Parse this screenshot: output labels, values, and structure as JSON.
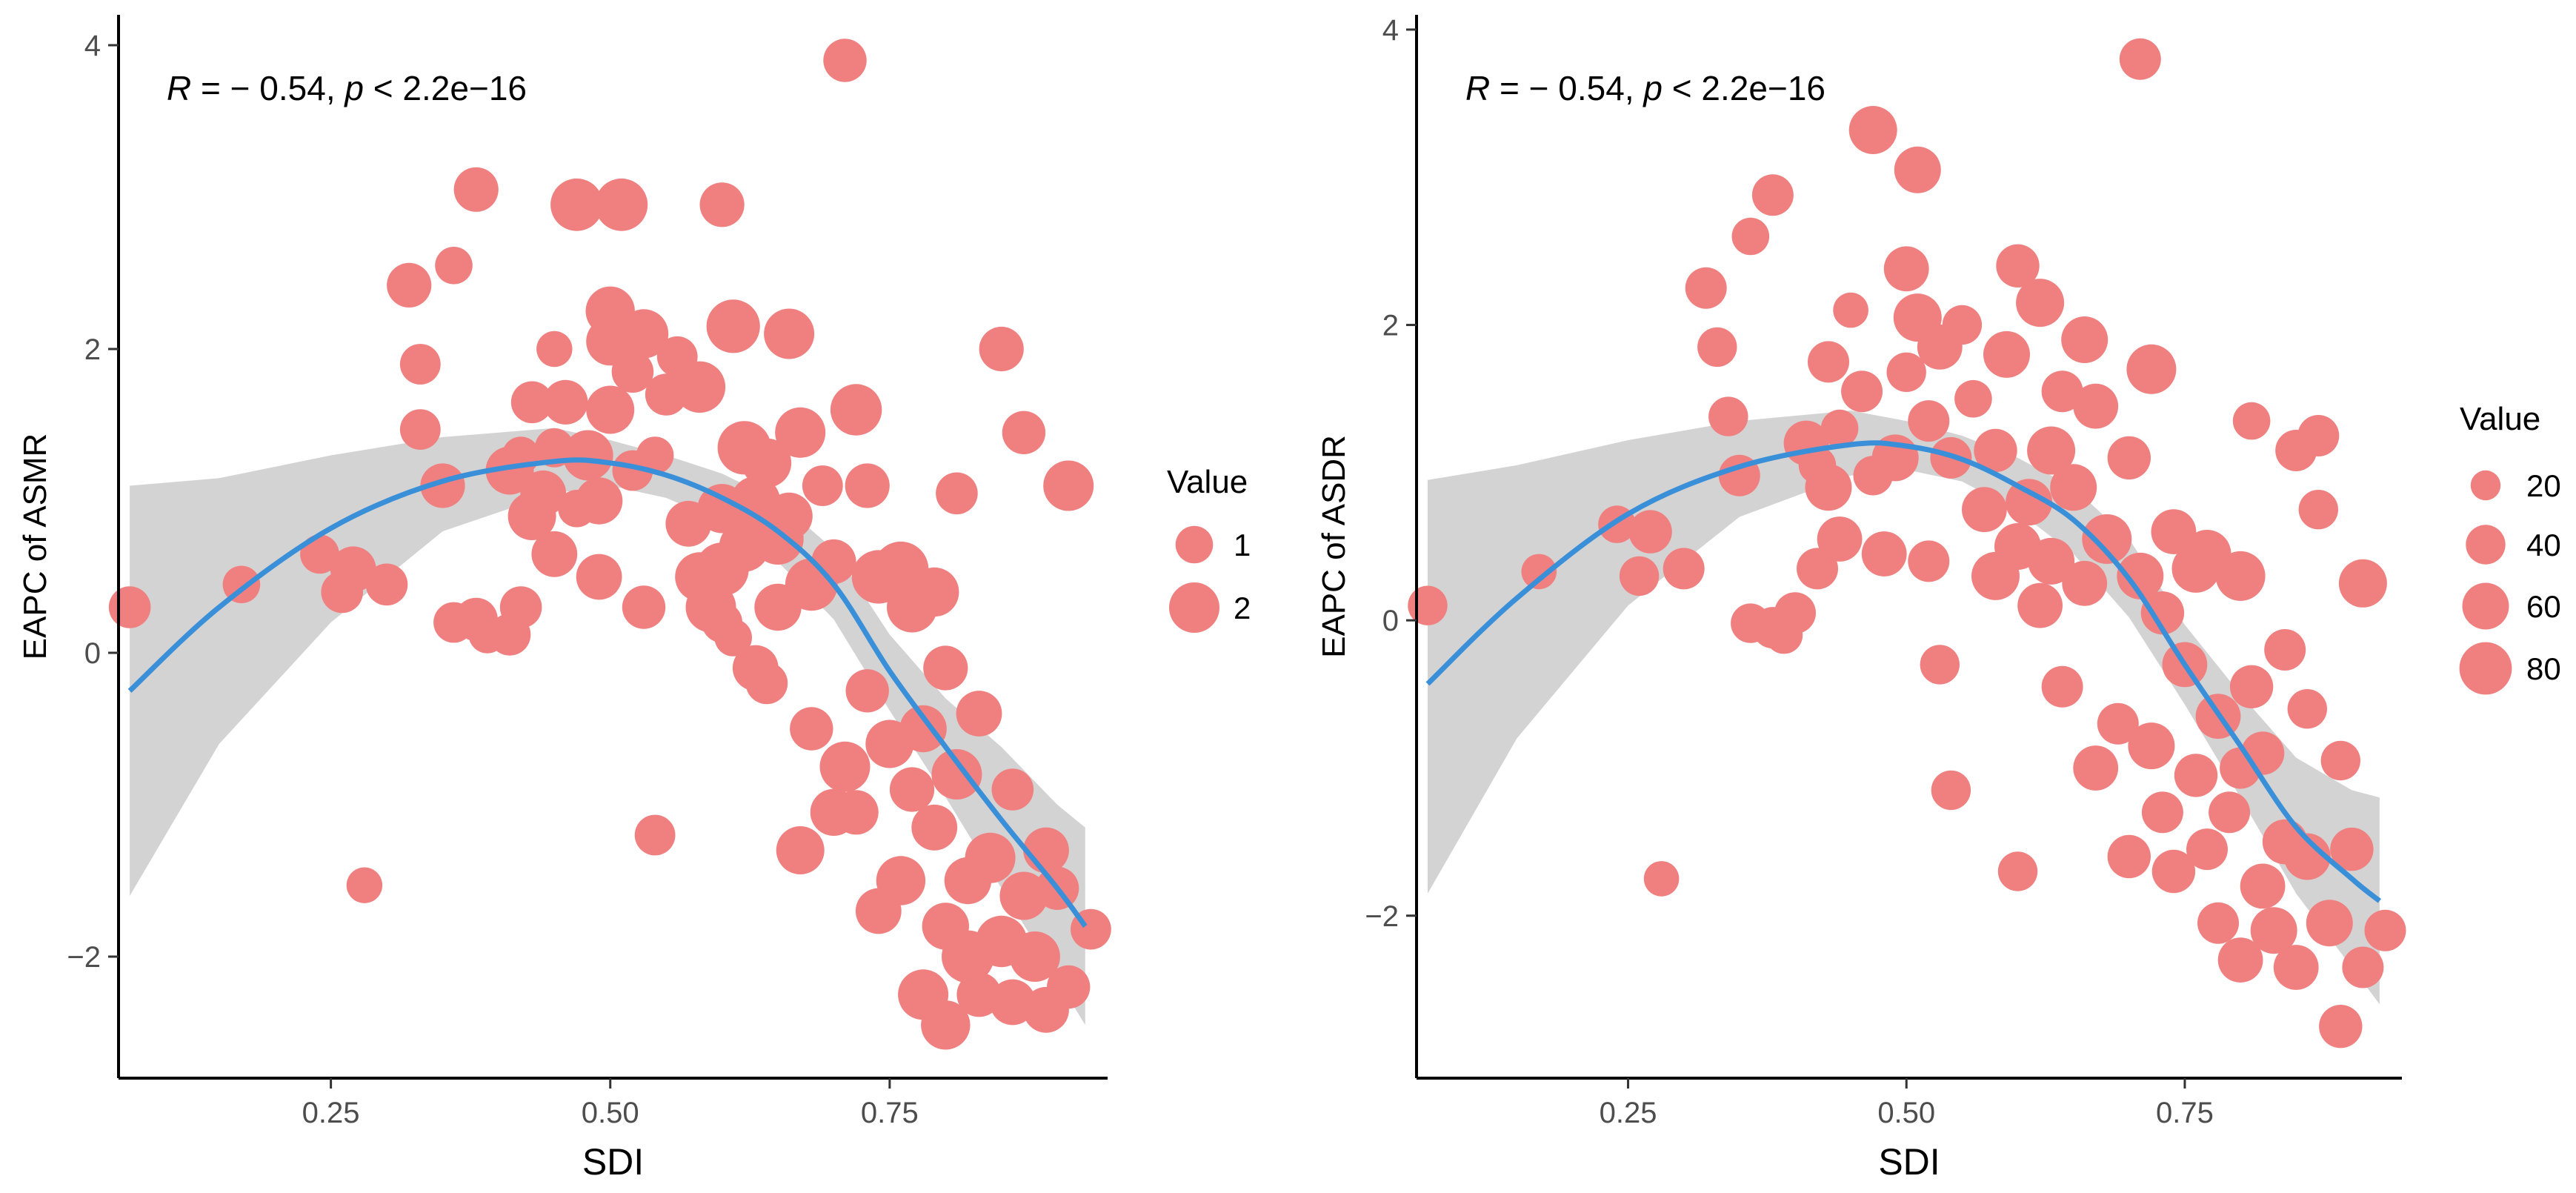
{
  "chart_data": [
    {
      "type": "scatter",
      "xlabel": "SDI",
      "ylabel": "EAPC of ASMR",
      "xlim": [
        0.06,
        0.945
      ],
      "ylim": [
        -2.8,
        4.2
      ],
      "xticks": [
        0.25,
        0.5,
        0.75
      ],
      "xtick_labels": [
        "0.25",
        "0.50",
        "0.75"
      ],
      "yticks": [
        -2,
        0,
        2,
        4
      ],
      "ytick_labels": [
        "−2",
        "0",
        "2",
        "4"
      ],
      "annotation": {
        "r_symbol": "R",
        "r_text": " = − 0.54, ",
        "p_symbol": "p",
        "p_text": " < 2.2e−16"
      },
      "point_color": "#F08080",
      "line_color": "#3A8FD9",
      "band_color": "#C8C8C8",
      "legend": {
        "title": "Value",
        "placement": "right",
        "entries": [
          {
            "label": "1",
            "size": 1
          },
          {
            "label": "2",
            "size": 2
          }
        ]
      },
      "size_domain": [
        0.2,
        2.6
      ],
      "points": [
        [
          0.07,
          0.3,
          1.3
        ],
        [
          0.17,
          0.45,
          1.0
        ],
        [
          0.24,
          0.65,
          1.1
        ],
        [
          0.26,
          0.4,
          1.3
        ],
        [
          0.27,
          0.55,
          1.6
        ],
        [
          0.28,
          -1.53,
          0.9
        ],
        [
          0.3,
          0.45,
          1.3
        ],
        [
          0.32,
          2.42,
          1.5
        ],
        [
          0.33,
          1.9,
          1.2
        ],
        [
          0.33,
          1.47,
          1.2
        ],
        [
          0.35,
          1.1,
          1.5
        ],
        [
          0.36,
          2.55,
          1.0
        ],
        [
          0.36,
          0.2,
          1.2
        ],
        [
          0.38,
          0.22,
          1.4
        ],
        [
          0.38,
          3.05,
          1.5
        ],
        [
          0.39,
          0.12,
          1.0
        ],
        [
          0.41,
          0.12,
          1.3
        ],
        [
          0.41,
          1.2,
          1.8
        ],
        [
          0.42,
          1.3,
          1.0
        ],
        [
          0.42,
          0.3,
          1.3
        ],
        [
          0.43,
          1.65,
          1.3
        ],
        [
          0.43,
          0.9,
          1.8
        ],
        [
          0.44,
          1.05,
          1.6
        ],
        [
          0.45,
          0.65,
          1.6
        ],
        [
          0.45,
          1.35,
          1.1
        ],
        [
          0.45,
          2.0,
          0.9
        ],
        [
          0.46,
          1.65,
          1.5
        ],
        [
          0.47,
          0.95,
          1.0
        ],
        [
          0.47,
          2.95,
          2.2
        ],
        [
          0.48,
          1.3,
          2.0
        ],
        [
          0.49,
          0.5,
          1.6
        ],
        [
          0.49,
          1.0,
          1.7
        ],
        [
          0.5,
          2.25,
          1.9
        ],
        [
          0.5,
          1.6,
          1.8
        ],
        [
          0.5,
          2.05,
          1.8
        ],
        [
          0.51,
          2.95,
          2.2
        ],
        [
          0.52,
          1.85,
          1.3
        ],
        [
          0.52,
          1.2,
          1.2
        ],
        [
          0.53,
          2.1,
          1.9
        ],
        [
          0.53,
          0.3,
          1.4
        ],
        [
          0.54,
          1.3,
          1.0
        ],
        [
          0.54,
          -1.2,
          1.2
        ],
        [
          0.55,
          1.7,
          1.3
        ],
        [
          0.56,
          1.95,
          1.2
        ],
        [
          0.57,
          0.85,
          1.6
        ],
        [
          0.58,
          0.5,
          1.9
        ],
        [
          0.58,
          1.75,
          2.1
        ],
        [
          0.59,
          0.3,
          2.0
        ],
        [
          0.6,
          0.2,
          1.2
        ],
        [
          0.6,
          0.95,
          1.9
        ],
        [
          0.6,
          0.55,
          2.3
        ],
        [
          0.6,
          2.95,
          1.5
        ],
        [
          0.61,
          0.1,
          1.0
        ],
        [
          0.61,
          2.15,
          2.3
        ],
        [
          0.62,
          1.35,
          2.3
        ],
        [
          0.62,
          0.7,
          2.0
        ],
        [
          0.63,
          -0.1,
          1.6
        ],
        [
          0.63,
          1.0,
          1.9
        ],
        [
          0.64,
          1.25,
          1.9
        ],
        [
          0.64,
          -0.2,
          1.3
        ],
        [
          0.65,
          0.75,
          2.1
        ],
        [
          0.65,
          0.3,
          1.7
        ],
        [
          0.66,
          2.1,
          2.0
        ],
        [
          0.66,
          0.9,
          1.7
        ],
        [
          0.67,
          -1.3,
          1.8
        ],
        [
          0.67,
          1.45,
          2.0
        ],
        [
          0.68,
          0.45,
          2.2
        ],
        [
          0.68,
          -0.5,
          1.4
        ],
        [
          0.69,
          1.1,
          1.2
        ],
        [
          0.7,
          -1.05,
          1.7
        ],
        [
          0.7,
          0.6,
          1.5
        ],
        [
          0.71,
          3.9,
          1.4
        ],
        [
          0.71,
          -0.75,
          2.0
        ],
        [
          0.72,
          1.6,
          2.1
        ],
        [
          0.72,
          -1.05,
          1.5
        ],
        [
          0.73,
          -0.25,
          1.4
        ],
        [
          0.73,
          1.1,
          1.5
        ],
        [
          0.74,
          -1.7,
          1.6
        ],
        [
          0.74,
          0.5,
          2.3
        ],
        [
          0.75,
          -0.6,
          1.8
        ],
        [
          0.76,
          0.55,
          2.5
        ],
        [
          0.76,
          -1.5,
          1.9
        ],
        [
          0.77,
          -0.9,
          1.5
        ],
        [
          0.77,
          0.3,
          2.0
        ],
        [
          0.78,
          -2.25,
          2.0
        ],
        [
          0.78,
          -0.5,
          1.7
        ],
        [
          0.79,
          -1.15,
          1.6
        ],
        [
          0.79,
          0.4,
          1.9
        ],
        [
          0.8,
          -2.45,
          1.9
        ],
        [
          0.8,
          -1.8,
          1.7
        ],
        [
          0.8,
          -0.1,
          1.5
        ],
        [
          0.81,
          1.05,
          1.3
        ],
        [
          0.81,
          -0.8,
          2.0
        ],
        [
          0.82,
          -2.0,
          2.2
        ],
        [
          0.82,
          -1.5,
          1.7
        ],
        [
          0.83,
          -0.4,
          1.6
        ],
        [
          0.83,
          -2.25,
          1.5
        ],
        [
          0.84,
          -1.35,
          2.0
        ],
        [
          0.85,
          2.0,
          1.5
        ],
        [
          0.85,
          -1.9,
          2.1
        ],
        [
          0.86,
          -2.3,
          1.6
        ],
        [
          0.86,
          -0.9,
          1.3
        ],
        [
          0.87,
          1.45,
          1.4
        ],
        [
          0.87,
          -1.6,
          1.8
        ],
        [
          0.88,
          -2.0,
          2.0
        ],
        [
          0.89,
          -1.3,
          1.6
        ],
        [
          0.89,
          -2.35,
          1.6
        ],
        [
          0.9,
          -1.55,
          1.4
        ],
        [
          0.91,
          -2.2,
          1.4
        ],
        [
          0.91,
          1.1,
          2.0
        ],
        [
          0.93,
          -1.82,
          1.2
        ]
      ],
      "smooth": {
        "x": [
          0.07,
          0.15,
          0.25,
          0.35,
          0.45,
          0.5,
          0.55,
          0.6,
          0.65,
          0.7,
          0.75,
          0.8,
          0.85,
          0.9,
          0.925
        ],
        "y": [
          -0.25,
          0.3,
          0.82,
          1.13,
          1.26,
          1.25,
          1.17,
          1.02,
          0.8,
          0.45,
          -0.12,
          -0.62,
          -1.1,
          -1.55,
          -1.8
        ],
        "lo": [
          -1.6,
          -0.6,
          0.2,
          0.8,
          1.05,
          1.1,
          1.02,
          0.86,
          0.6,
          0.22,
          -0.38,
          -0.95,
          -1.55,
          -2.15,
          -2.45
        ],
        "hi": [
          1.1,
          1.15,
          1.3,
          1.42,
          1.48,
          1.4,
          1.3,
          1.18,
          1.0,
          0.68,
          0.12,
          -0.3,
          -0.62,
          -1.0,
          -1.15
        ]
      }
    },
    {
      "type": "scatter",
      "xlabel": "SDI",
      "ylabel": "EAPC of ASDR",
      "xlim": [
        0.06,
        0.945
      ],
      "ylim": [
        -3.1,
        4.1
      ],
      "xticks": [
        0.25,
        0.5,
        0.75
      ],
      "xtick_labels": [
        "0.25",
        "0.50",
        "0.75"
      ],
      "yticks": [
        -2,
        0,
        2,
        4
      ],
      "ytick_labels": [
        "−2",
        "0",
        "2",
        "4"
      ],
      "annotation": {
        "r_symbol": "R",
        "r_text": " = − 0.54, ",
        "p_symbol": "p",
        "p_text": " < 2.2e−16"
      },
      "point_color": "#F08080",
      "line_color": "#3A8FD9",
      "band_color": "#C8C8C8",
      "legend": {
        "title": "Value",
        "placement": "right",
        "entries": [
          {
            "label": "20",
            "size": 20
          },
          {
            "label": "40",
            "size": 40
          },
          {
            "label": "60",
            "size": 60
          },
          {
            "label": "80",
            "size": 80
          }
        ]
      },
      "size_domain": [
        5,
        95
      ],
      "points": [
        [
          0.07,
          0.1,
          40
        ],
        [
          0.17,
          0.33,
          30
        ],
        [
          0.24,
          0.65,
          35
        ],
        [
          0.26,
          0.3,
          40
        ],
        [
          0.27,
          0.6,
          50
        ],
        [
          0.28,
          -1.75,
          30
        ],
        [
          0.3,
          0.35,
          45
        ],
        [
          0.32,
          2.25,
          45
        ],
        [
          0.33,
          1.85,
          40
        ],
        [
          0.34,
          1.38,
          40
        ],
        [
          0.35,
          0.98,
          45
        ],
        [
          0.36,
          2.6,
          35
        ],
        [
          0.36,
          -0.02,
          40
        ],
        [
          0.38,
          -0.05,
          45
        ],
        [
          0.38,
          2.88,
          45
        ],
        [
          0.39,
          -0.1,
          35
        ],
        [
          0.4,
          0.05,
          45
        ],
        [
          0.41,
          1.2,
          55
        ],
        [
          0.42,
          0.35,
          45
        ],
        [
          0.42,
          1.05,
          35
        ],
        [
          0.43,
          1.75,
          45
        ],
        [
          0.43,
          0.9,
          60
        ],
        [
          0.44,
          1.3,
          35
        ],
        [
          0.44,
          0.55,
          55
        ],
        [
          0.45,
          2.1,
          30
        ],
        [
          0.46,
          1.55,
          45
        ],
        [
          0.47,
          3.32,
          65
        ],
        [
          0.47,
          0.98,
          40
        ],
        [
          0.48,
          0.45,
          55
        ],
        [
          0.49,
          1.1,
          60
        ],
        [
          0.5,
          2.38,
          55
        ],
        [
          0.5,
          1.68,
          40
        ],
        [
          0.51,
          3.05,
          60
        ],
        [
          0.51,
          2.05,
          65
        ],
        [
          0.52,
          1.35,
          45
        ],
        [
          0.52,
          0.4,
          45
        ],
        [
          0.53,
          1.85,
          55
        ],
        [
          0.53,
          -0.3,
          40
        ],
        [
          0.54,
          1.1,
          45
        ],
        [
          0.54,
          -1.15,
          40
        ],
        [
          0.55,
          2.0,
          40
        ],
        [
          0.56,
          1.5,
          35
        ],
        [
          0.57,
          0.75,
          55
        ],
        [
          0.58,
          1.15,
          50
        ],
        [
          0.58,
          0.3,
          65
        ],
        [
          0.59,
          1.8,
          60
        ],
        [
          0.6,
          2.4,
          50
        ],
        [
          0.6,
          0.5,
          60
        ],
        [
          0.6,
          -1.7,
          40
        ],
        [
          0.61,
          0.8,
          60
        ],
        [
          0.62,
          2.15,
          65
        ],
        [
          0.62,
          0.1,
          55
        ],
        [
          0.63,
          1.15,
          65
        ],
        [
          0.63,
          0.4,
          60
        ],
        [
          0.64,
          1.55,
          45
        ],
        [
          0.64,
          -0.45,
          45
        ],
        [
          0.65,
          0.9,
          60
        ],
        [
          0.66,
          1.9,
          60
        ],
        [
          0.66,
          0.25,
          55
        ],
        [
          0.67,
          -1.0,
          55
        ],
        [
          0.67,
          1.45,
          55
        ],
        [
          0.68,
          0.55,
          70
        ],
        [
          0.69,
          -0.7,
          45
        ],
        [
          0.7,
          1.1,
          50
        ],
        [
          0.7,
          -1.6,
          50
        ],
        [
          0.71,
          3.8,
          45
        ],
        [
          0.71,
          0.3,
          60
        ],
        [
          0.72,
          -0.85,
          60
        ],
        [
          0.72,
          1.7,
          70
        ],
        [
          0.73,
          -1.3,
          45
        ],
        [
          0.73,
          0.05,
          50
        ],
        [
          0.74,
          0.6,
          55
        ],
        [
          0.74,
          -1.7,
          50
        ],
        [
          0.75,
          -0.3,
          55
        ],
        [
          0.76,
          0.35,
          65
        ],
        [
          0.76,
          -1.05,
          50
        ],
        [
          0.77,
          -1.55,
          45
        ],
        [
          0.77,
          0.45,
          65
        ],
        [
          0.78,
          -2.05,
          45
        ],
        [
          0.78,
          -0.65,
          55
        ],
        [
          0.79,
          -1.3,
          45
        ],
        [
          0.8,
          -1.0,
          45
        ],
        [
          0.8,
          -2.3,
          55
        ],
        [
          0.8,
          0.3,
          70
        ],
        [
          0.81,
          -0.45,
          50
        ],
        [
          0.81,
          1.35,
          35
        ],
        [
          0.82,
          -1.8,
          55
        ],
        [
          0.82,
          -0.9,
          50
        ],
        [
          0.83,
          -2.1,
          60
        ],
        [
          0.84,
          -1.5,
          55
        ],
        [
          0.84,
          -0.2,
          45
        ],
        [
          0.85,
          1.15,
          45
        ],
        [
          0.85,
          -2.35,
          55
        ],
        [
          0.86,
          -1.6,
          60
        ],
        [
          0.86,
          -0.6,
          40
        ],
        [
          0.87,
          0.75,
          40
        ],
        [
          0.87,
          1.25,
          45
        ],
        [
          0.88,
          -2.05,
          60
        ],
        [
          0.89,
          -0.95,
          40
        ],
        [
          0.89,
          -2.75,
          50
        ],
        [
          0.9,
          -1.55,
          50
        ],
        [
          0.91,
          0.25,
          65
        ],
        [
          0.91,
          -2.35,
          45
        ],
        [
          0.93,
          -2.1,
          45
        ]
      ],
      "smooth": {
        "x": [
          0.07,
          0.15,
          0.25,
          0.35,
          0.45,
          0.5,
          0.55,
          0.6,
          0.65,
          0.7,
          0.75,
          0.8,
          0.85,
          0.9,
          0.925
        ],
        "y": [
          -0.43,
          0.15,
          0.72,
          1.04,
          1.19,
          1.18,
          1.09,
          0.91,
          0.68,
          0.28,
          -0.3,
          -0.85,
          -1.4,
          -1.75,
          -1.9
        ],
        "lo": [
          -1.85,
          -0.8,
          0.1,
          0.7,
          0.98,
          1.02,
          0.94,
          0.74,
          0.45,
          0.02,
          -0.57,
          -1.2,
          -1.85,
          -2.35,
          -2.6
        ],
        "hi": [
          0.95,
          1.05,
          1.22,
          1.35,
          1.42,
          1.35,
          1.25,
          1.1,
          0.9,
          0.55,
          -0.03,
          -0.5,
          -0.93,
          -1.15,
          -1.2
        ]
      }
    }
  ]
}
